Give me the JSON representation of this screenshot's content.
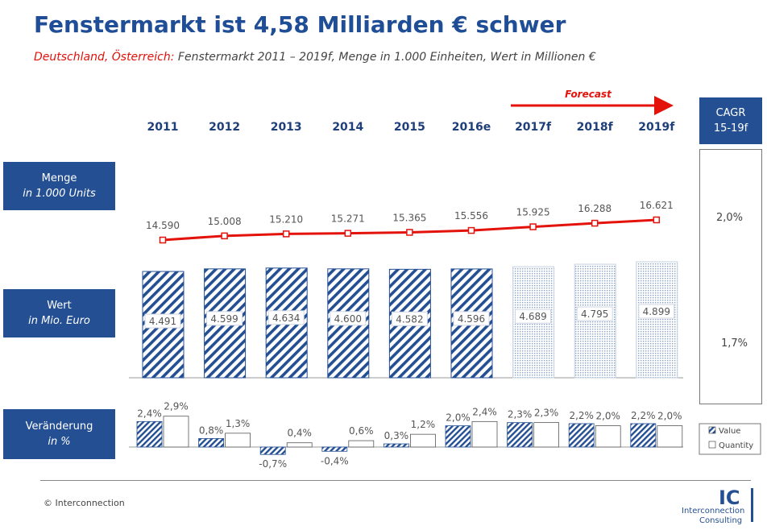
{
  "title": "Fenstermarkt ist 4,58 Milliarden € schwer",
  "subtitle_highlight": "Deutschland, Österreich:",
  "subtitle_rest": " Fenstermarkt 2011 – 2019f, Menge in 1.000 Einheiten, Wert in Millionen €",
  "row_labels": {
    "menge_l1": "Menge",
    "menge_l2": "in 1.000 Units",
    "wert_l1": "Wert",
    "wert_l2": "in Mio. Euro",
    "veraenderung_l1": "Veränderung",
    "veraenderung_l2": "in %"
  },
  "cagr": {
    "label_l1": "CAGR",
    "label_l2": "15-19f",
    "menge": "2,0%",
    "wert": "1,7%"
  },
  "forecast_label": "Forecast",
  "legend": {
    "value": "Value",
    "quantity": "Quantity"
  },
  "copyright": "© Interconnection",
  "logo": {
    "mark": "IC",
    "line1": "Interconnection",
    "line2": "Consulting"
  },
  "colors": {
    "brand": "#244f93",
    "accent_red": "#e3120b",
    "title": "#1f4e96"
  },
  "chart_data": [
    {
      "type": "line",
      "name": "Menge",
      "categories": [
        "2011",
        "2012",
        "2013",
        "2014",
        "2015",
        "2016e",
        "2017f",
        "2018f",
        "2019f"
      ],
      "values": [
        14590,
        15008,
        15210,
        15271,
        15365,
        15556,
        15925,
        16288,
        16621
      ],
      "labels": [
        "14.590",
        "15.008",
        "15.210",
        "15.271",
        "15.365",
        "15.556",
        "15.925",
        "16.288",
        "16.621"
      ]
    },
    {
      "type": "bar",
      "name": "Wert",
      "categories": [
        "2011",
        "2012",
        "2013",
        "2014",
        "2015",
        "2016e",
        "2017f",
        "2018f",
        "2019f"
      ],
      "values": [
        4491,
        4599,
        4634,
        4600,
        4582,
        4596,
        4689,
        4795,
        4899
      ],
      "labels": [
        "4.491",
        "4.599",
        "4.634",
        "4.600",
        "4.582",
        "4.596",
        "4.689",
        "4.795",
        "4.899"
      ],
      "forecast_from_index": 6
    },
    {
      "type": "bar",
      "name": "Veränderung",
      "categories": [
        "2011",
        "2012",
        "2013",
        "2014",
        "2015",
        "2016e",
        "2017f",
        "2018f",
        "2019f"
      ],
      "series": [
        {
          "name": "Value",
          "values": [
            2.4,
            0.8,
            -0.7,
            -0.4,
            0.3,
            2.0,
            2.3,
            2.2,
            2.2
          ],
          "labels": [
            "2,4%",
            "0,8%",
            "-0,7%",
            "-0,4%",
            "0,3%",
            "2,0%",
            "2,3%",
            "2,2%",
            "2,2%"
          ]
        },
        {
          "name": "Quantity",
          "values": [
            2.9,
            1.3,
            0.4,
            0.6,
            1.2,
            2.4,
            2.3,
            2.0,
            2.0
          ],
          "labels": [
            "2,9%",
            "1,3%",
            "0,4%",
            "0,6%",
            "1,2%",
            "2,4%",
            "2,3%",
            "2,0%",
            "2,0%"
          ]
        }
      ]
    }
  ]
}
